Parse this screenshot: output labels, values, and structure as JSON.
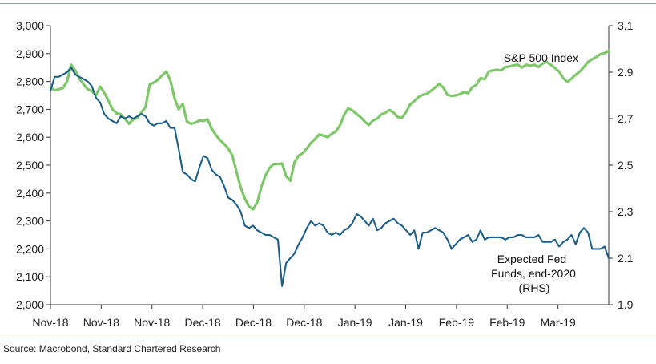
{
  "source": "Source: Macrobond, Standard Chartered Research",
  "chart_data": {
    "type": "line",
    "title": "",
    "xlabel": "",
    "ylabel_left": "",
    "ylabel_right": "",
    "left_axis": {
      "range": [
        2000,
        3000
      ],
      "ticks": [
        "2,000",
        "2,100",
        "2,200",
        "2,300",
        "2,400",
        "2,500",
        "2,600",
        "2,700",
        "2,800",
        "2,900",
        "3,000"
      ]
    },
    "right_axis": {
      "range": [
        1.9,
        3.1
      ],
      "ticks": [
        "1.9",
        "2.1",
        "2.3",
        "2.5",
        "2.7",
        "2.9",
        "3.1"
      ]
    },
    "x_ticks": [
      "Nov-18",
      "Nov-18",
      "Nov-18",
      "Dec-18",
      "Dec-18",
      "Dec-18",
      "Jan-19",
      "Jan-19",
      "Feb-19",
      "Feb-19",
      "Mar-19"
    ],
    "grid": false,
    "annotations": {
      "sp500": "S&P 500 Index",
      "fed_line1": "Expected Fed",
      "fed_line2": "Funds, end-2020",
      "fed_line3": "(RHS)"
    },
    "series": [
      {
        "name": "S&P 500 Index",
        "axis": "left",
        "color": "#7ec86a",
        "values": [
          2780,
          2768,
          2772,
          2776,
          2800,
          2860,
          2840,
          2810,
          2790,
          2772,
          2766,
          2750,
          2782,
          2760,
          2732,
          2700,
          2686,
          2682,
          2666,
          2648,
          2664,
          2668,
          2690,
          2708,
          2790,
          2796,
          2806,
          2822,
          2836,
          2804,
          2740,
          2700,
          2720,
          2656,
          2648,
          2652,
          2660,
          2658,
          2664,
          2630,
          2608,
          2590,
          2576,
          2560,
          2534,
          2476,
          2420,
          2380,
          2352,
          2342,
          2366,
          2422,
          2464,
          2490,
          2504,
          2504,
          2506,
          2460,
          2444,
          2510,
          2534,
          2543,
          2560,
          2580,
          2594,
          2610,
          2606,
          2600,
          2612,
          2620,
          2642,
          2680,
          2704,
          2696,
          2684,
          2672,
          2656,
          2644,
          2660,
          2666,
          2682,
          2688,
          2698,
          2688,
          2672,
          2670,
          2690,
          2718,
          2730,
          2744,
          2752,
          2756,
          2766,
          2778,
          2792,
          2778,
          2752,
          2748,
          2750,
          2754,
          2762,
          2758,
          2780,
          2788,
          2812,
          2808,
          2836,
          2840,
          2842,
          2840,
          2852,
          2854,
          2858,
          2860,
          2850,
          2860,
          2856,
          2860,
          2852,
          2864,
          2870,
          2860,
          2848,
          2836,
          2812,
          2798,
          2810,
          2824,
          2836,
          2852,
          2870,
          2880,
          2888,
          2898,
          2902,
          2910
        ]
      },
      {
        "name": "Expected Fed Funds, end-2020",
        "axis": "right",
        "color": "#1d5f88",
        "values": [
          2.82,
          2.88,
          2.88,
          2.89,
          2.9,
          2.92,
          2.89,
          2.88,
          2.87,
          2.86,
          2.84,
          2.79,
          2.77,
          2.72,
          2.7,
          2.69,
          2.68,
          2.71,
          2.7,
          2.71,
          2.7,
          2.71,
          2.72,
          2.71,
          2.68,
          2.67,
          2.68,
          2.68,
          2.69,
          2.66,
          2.66,
          2.57,
          2.47,
          2.46,
          2.44,
          2.43,
          2.49,
          2.54,
          2.53,
          2.48,
          2.46,
          2.45,
          2.41,
          2.36,
          2.35,
          2.33,
          2.3,
          2.24,
          2.23,
          2.24,
          2.22,
          2.21,
          2.2,
          2.2,
          2.19,
          2.18,
          1.98,
          2.08,
          2.1,
          2.12,
          2.16,
          2.19,
          2.23,
          2.26,
          2.24,
          2.25,
          2.24,
          2.21,
          2.2,
          2.21,
          2.2,
          2.22,
          2.23,
          2.25,
          2.29,
          2.28,
          2.26,
          2.24,
          2.27,
          2.22,
          2.23,
          2.25,
          2.26,
          2.27,
          2.25,
          2.24,
          2.22,
          2.2,
          2.22,
          2.14,
          2.21,
          2.21,
          2.22,
          2.23,
          2.22,
          2.21,
          2.18,
          2.14,
          2.16,
          2.18,
          2.19,
          2.2,
          2.17,
          2.18,
          2.22,
          2.18,
          2.19,
          2.19,
          2.19,
          2.19,
          2.18,
          2.19,
          2.19,
          2.2,
          2.2,
          2.19,
          2.19,
          2.19,
          2.2,
          2.17,
          2.17,
          2.17,
          2.18,
          2.15,
          2.17,
          2.18,
          2.2,
          2.16,
          2.21,
          2.23,
          2.21,
          2.14,
          2.14,
          2.14,
          2.15,
          2.1
        ]
      }
    ]
  }
}
